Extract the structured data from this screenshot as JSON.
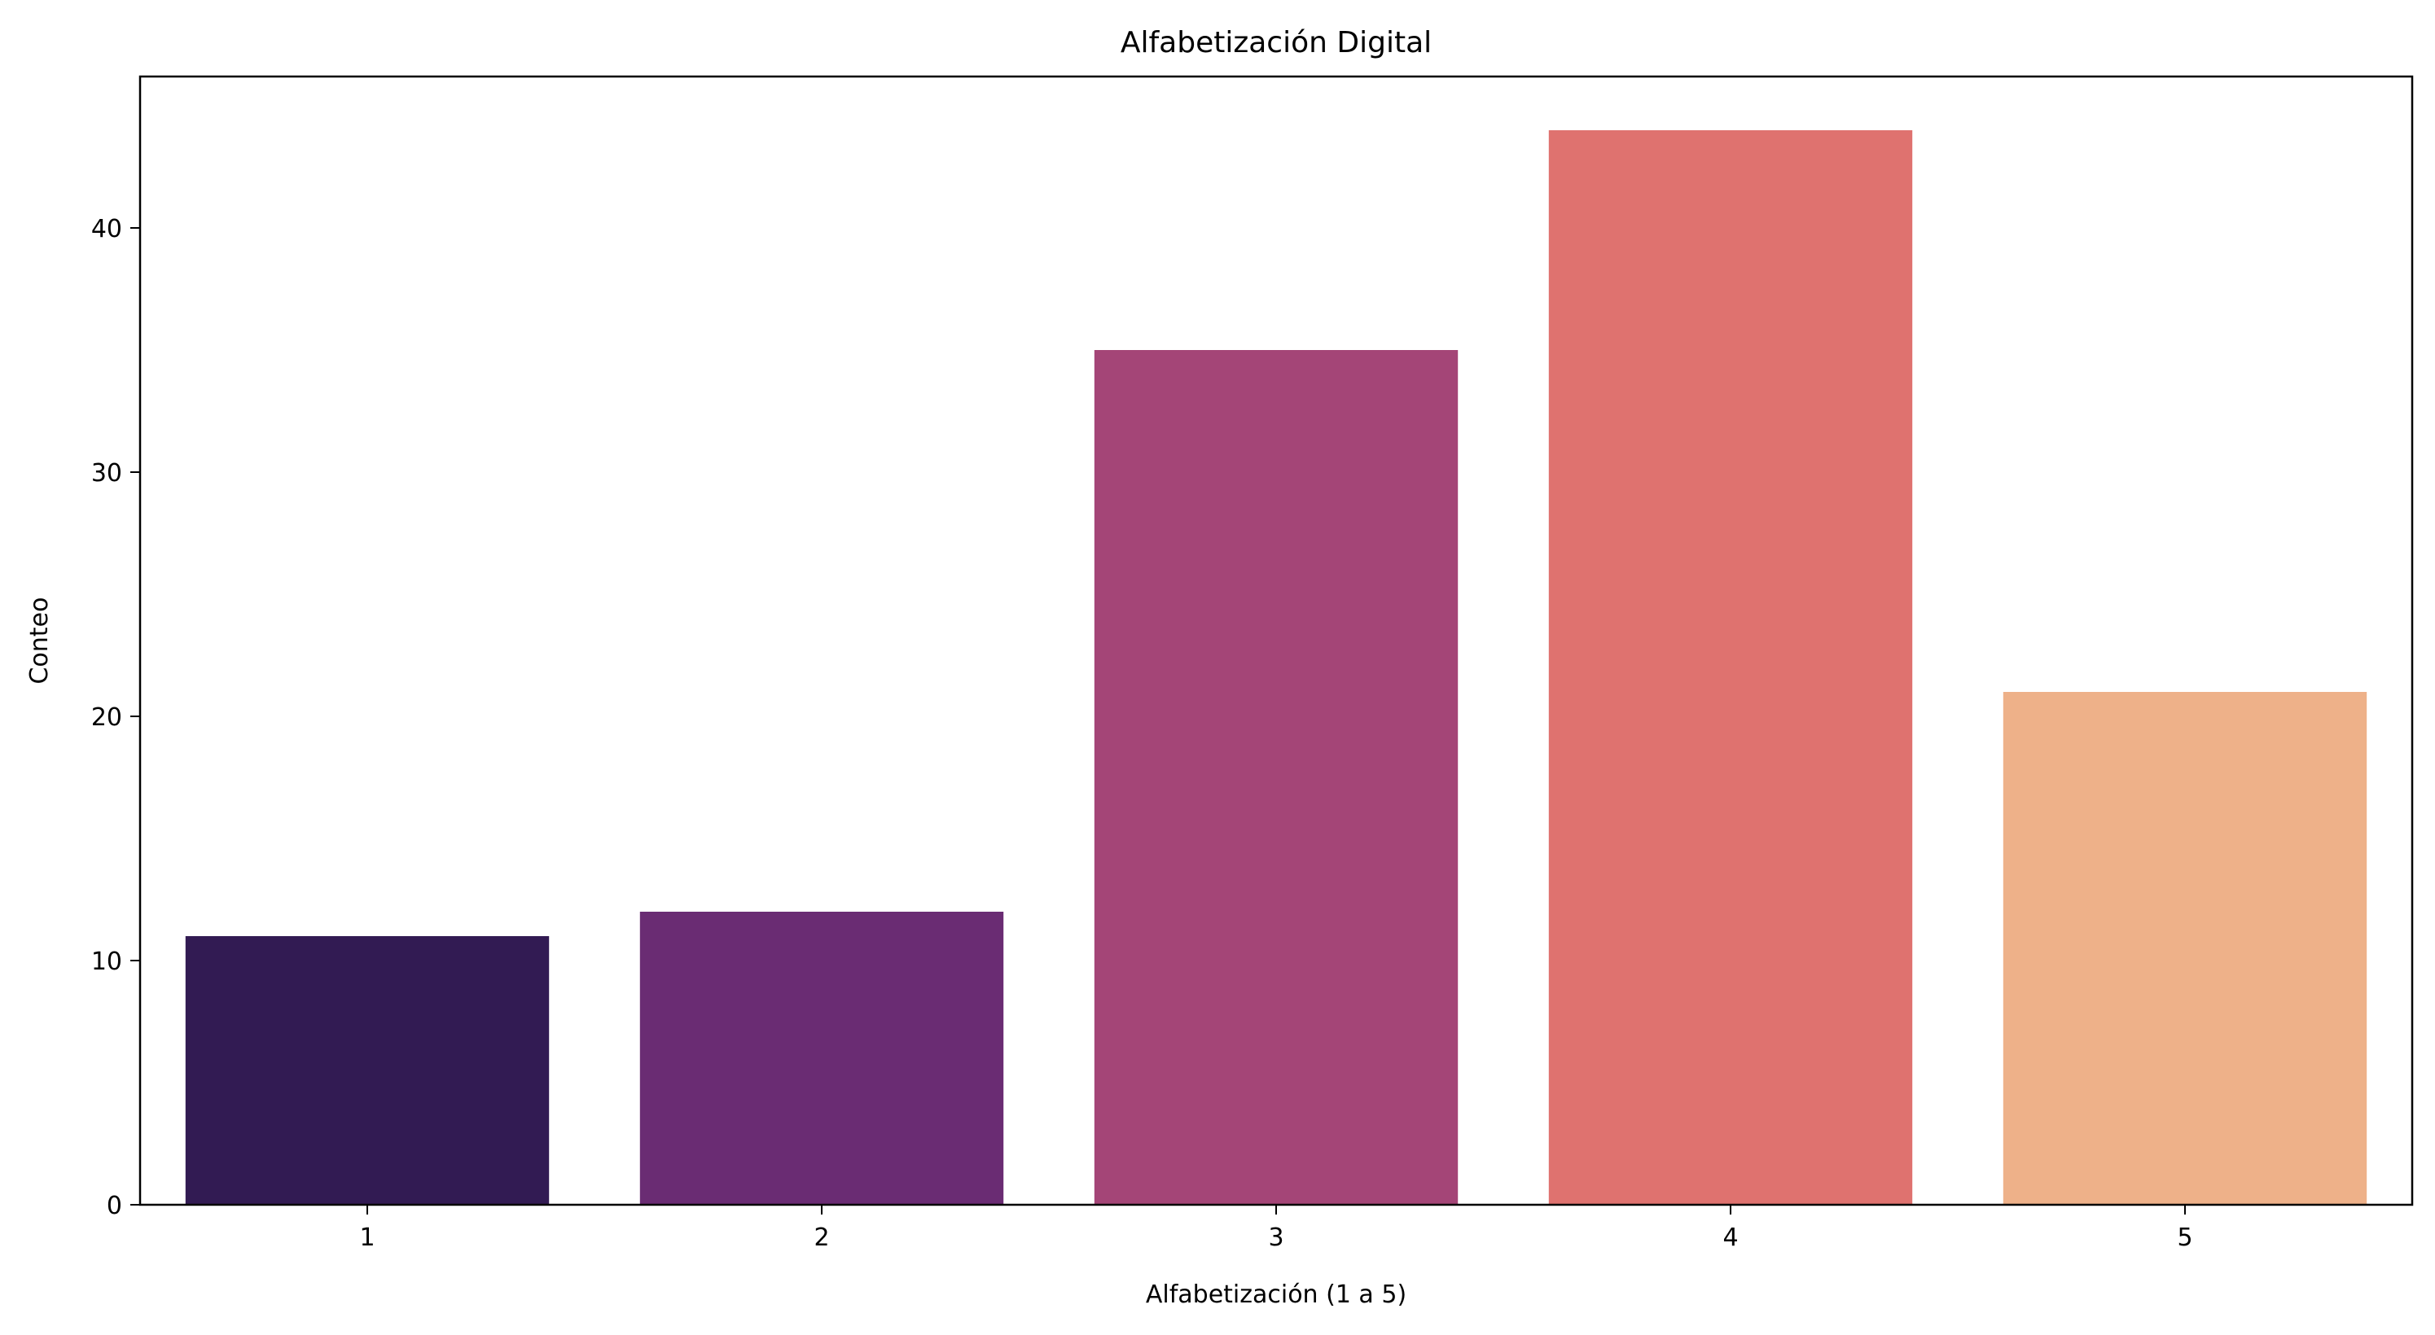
{
  "chart_data": {
    "type": "bar",
    "title": "Alfabetización Digital",
    "xlabel": "Alfabetización (1 a 5)",
    "ylabel": "Conteo",
    "categories": [
      "1",
      "2",
      "3",
      "4",
      "5"
    ],
    "values": [
      11,
      12,
      35,
      44,
      21
    ],
    "colors": [
      "#321b53",
      "#6a2c73",
      "#a44577",
      "#df726f",
      "#eeb189"
    ],
    "ylim": [
      0,
      46.2
    ],
    "yticks": [
      0,
      10,
      20,
      30,
      40
    ],
    "grid": false,
    "legend": "none"
  }
}
